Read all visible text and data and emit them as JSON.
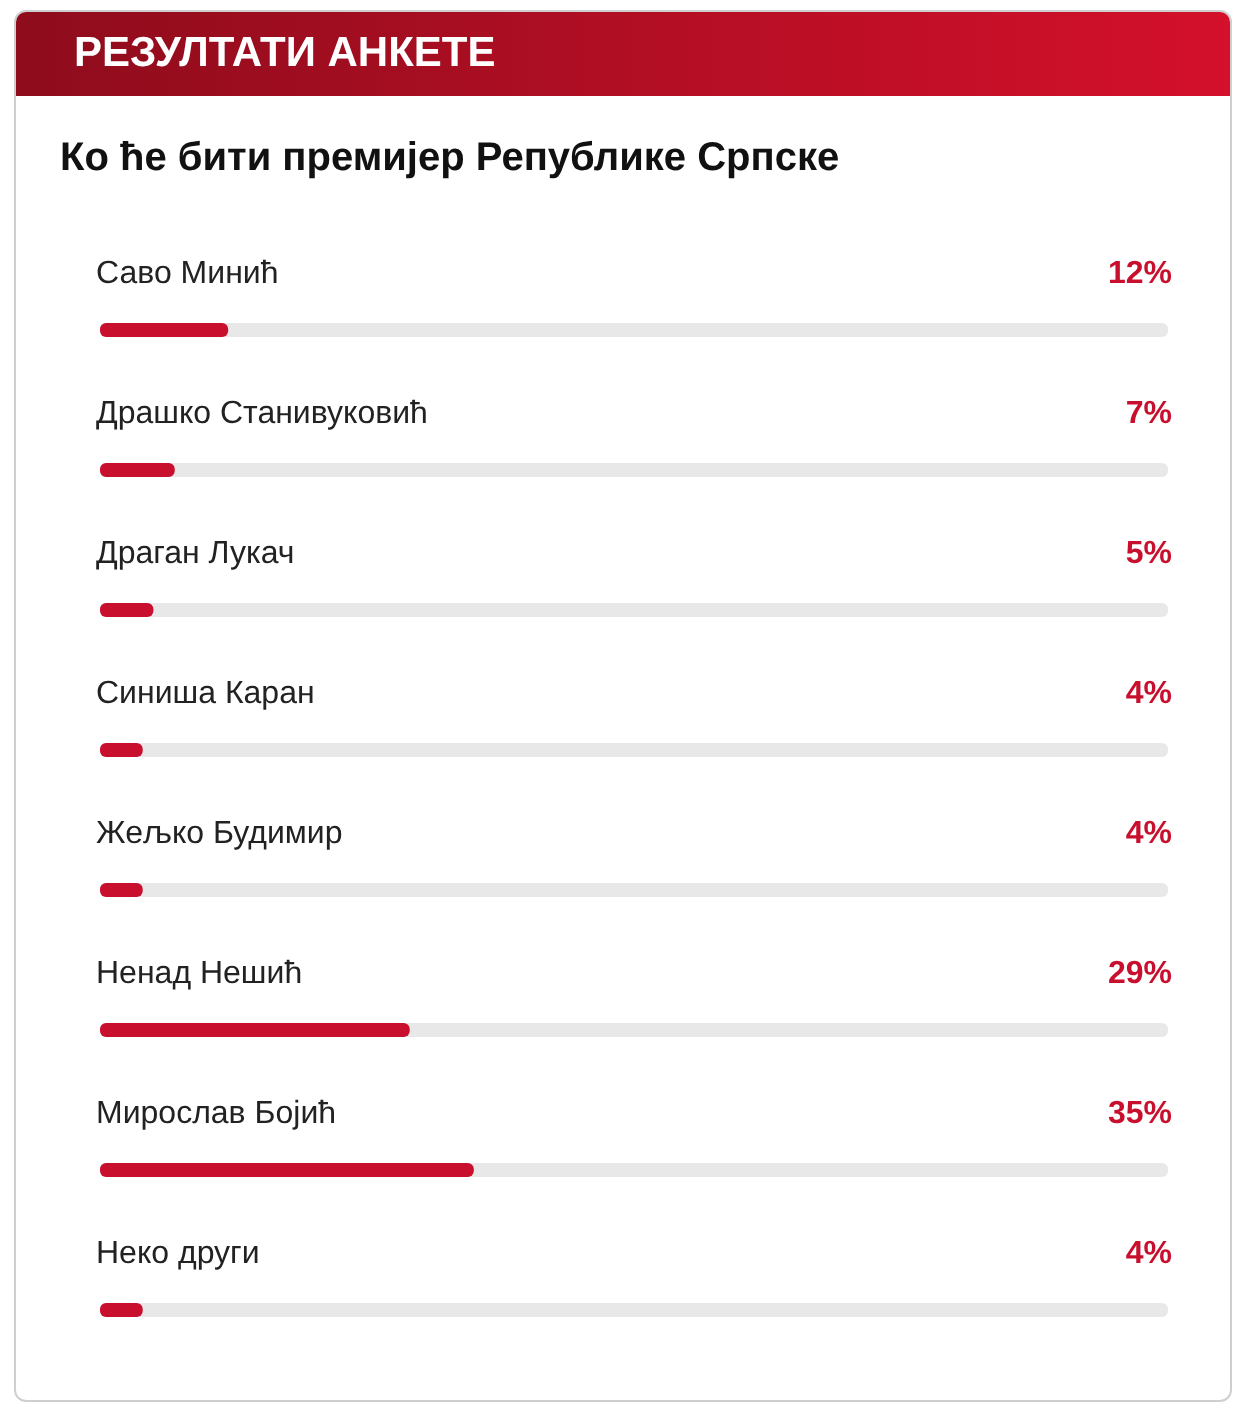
{
  "chart_data": {
    "type": "bar",
    "orientation": "horizontal",
    "title": "РЕЗУЛТАТИ АНКЕТЕ",
    "subtitle": "Ко ће бити премијер Републике Српске",
    "categories": [
      "Саво Минић",
      "Драшко Станивуковић",
      "Драган Лукач",
      "Синиша Каран",
      "Жељко Будимир",
      "Ненад Нешић",
      "Мирослав Бојић",
      "Неко други"
    ],
    "values": [
      12,
      7,
      5,
      4,
      4,
      29,
      35,
      4
    ],
    "value_labels": [
      "12%",
      "7%",
      "5%",
      "4%",
      "4%",
      "29%",
      "35%",
      "4%"
    ],
    "color": "#c8102e",
    "xlim": [
      0,
      100
    ],
    "tick_labels": false
  }
}
